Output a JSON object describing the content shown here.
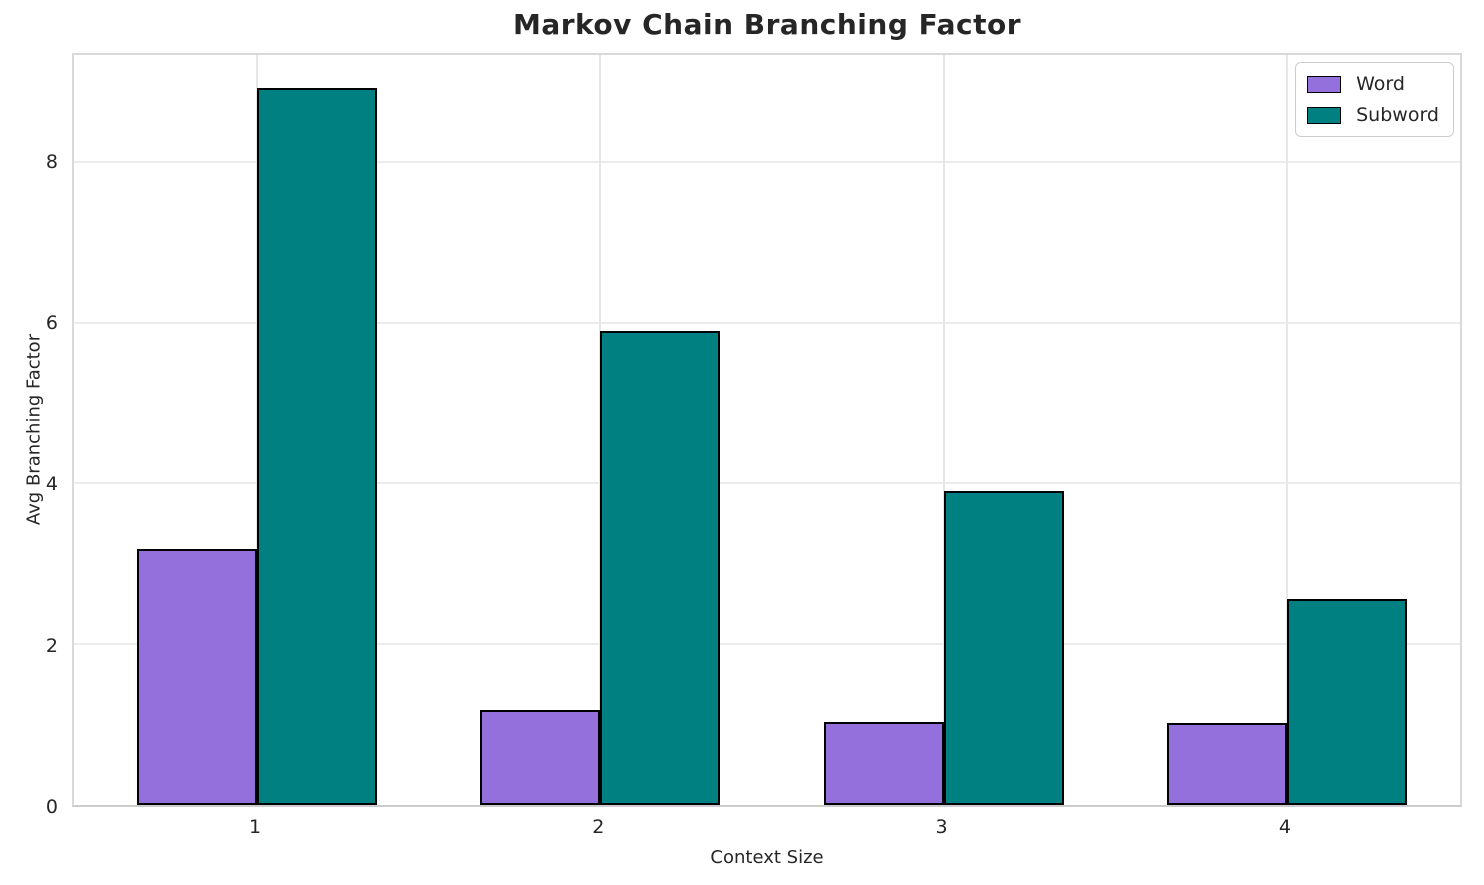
{
  "chart_data": {
    "type": "bar",
    "title": "Markov Chain Branching Factor",
    "xlabel": "Context Size",
    "ylabel": "Avg Branching Factor",
    "categories": [
      "1",
      "2",
      "3",
      "4"
    ],
    "series": [
      {
        "name": "Word",
        "color": "#9370DB",
        "values": [
          3.18,
          1.18,
          1.03,
          1.02
        ]
      },
      {
        "name": "Subword",
        "color": "#008080",
        "values": [
          8.89,
          5.88,
          3.9,
          2.56
        ]
      }
    ],
    "yticks": [
      0,
      2,
      4,
      6,
      8
    ],
    "ylim": [
      0,
      9.35
    ],
    "bar_edge_color": "#000000",
    "grid": true,
    "legend_position": "upper right",
    "colors": {
      "grid": "#ececec",
      "spine": "#d9d9d9",
      "text": "#262626",
      "background": "#ffffff"
    }
  }
}
